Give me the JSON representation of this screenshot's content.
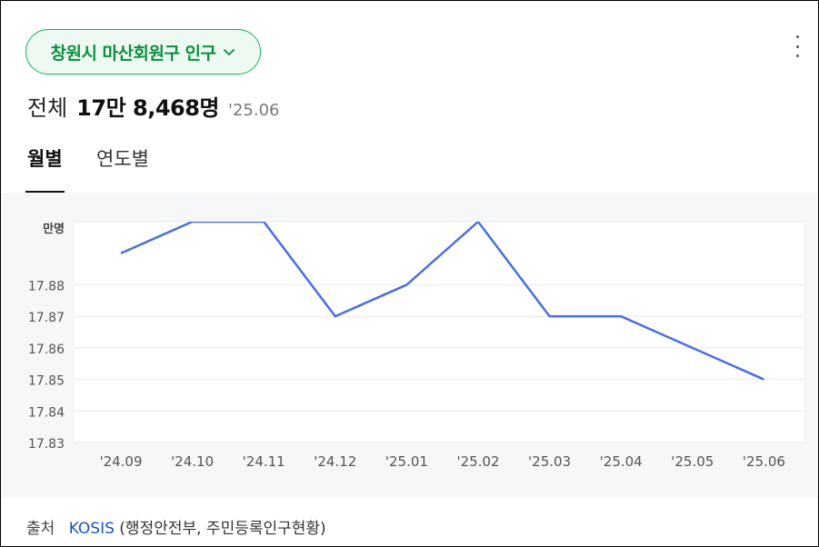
{
  "region_selector": {
    "label": "창원시 마산회원구 인구"
  },
  "summary": {
    "label": "전체",
    "value": "17만 8,468명",
    "date": "'25.06"
  },
  "tabs": [
    {
      "label": "월별",
      "active": true
    },
    {
      "label": "연도별",
      "active": false
    }
  ],
  "footer": {
    "source_label": "출처",
    "source_link": "KOSIS",
    "source_note": "(행정안전부, 주민등록인구현황)"
  },
  "colors": {
    "accent_green": "#0b8f3f",
    "line_blue": "#4a6fdc",
    "link_blue": "#1a56c4"
  },
  "chart_data": {
    "type": "line",
    "unit_label": "만명",
    "categories": [
      "'24.09",
      "'24.10",
      "'24.11",
      "'24.12",
      "'25.01",
      "'25.02",
      "'25.03",
      "'25.04",
      "'25.05",
      "'25.06"
    ],
    "values": [
      17.89,
      17.9,
      17.9,
      17.87,
      17.88,
      17.9,
      17.87,
      17.87,
      17.86,
      17.85
    ],
    "y_ticks": [
      "17.83",
      "17.84",
      "17.85",
      "17.86",
      "17.87",
      "17.88"
    ],
    "ylim": [
      17.83,
      17.9
    ],
    "grid": true
  }
}
